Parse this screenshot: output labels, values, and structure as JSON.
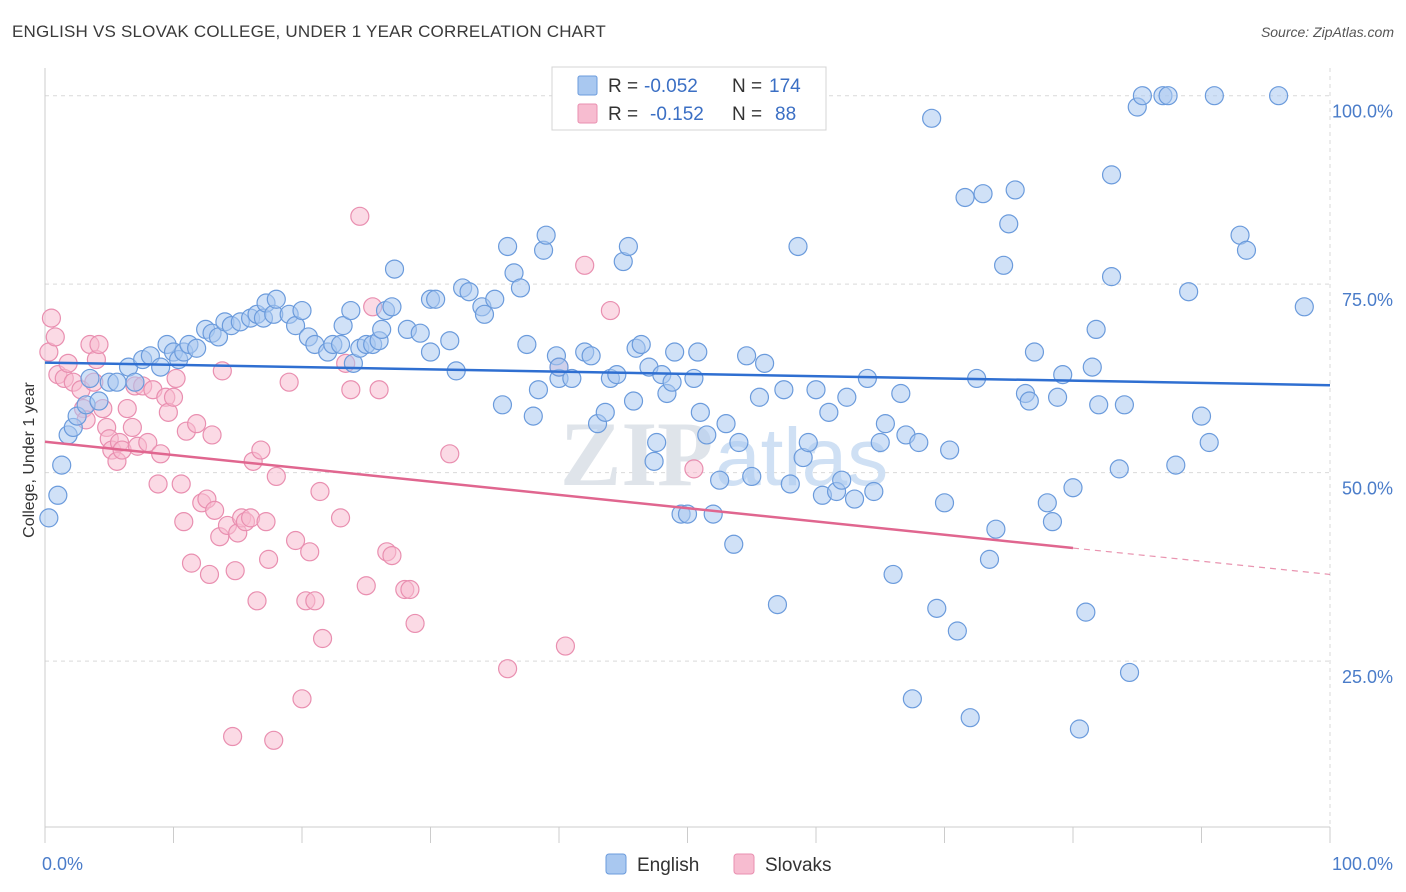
{
  "title": "ENGLISH VS SLOVAK COLLEGE, UNDER 1 YEAR CORRELATION CHART",
  "source": "Source: ZipAtlas.com",
  "colors": {
    "english_fill": "#a9c8f0",
    "english_stroke": "#6b9bdc",
    "english_line": "#2f6fd1",
    "slovak_fill": "#f7bcd0",
    "slovak_stroke": "#e98fb0",
    "slovak_line": "#e0668f",
    "tick_text": "#4a7cc9",
    "grid": "#d9d9d9"
  },
  "legend_box": {
    "rows": [
      {
        "r_label": "R =",
        "r_value": "-0.052",
        "n_label": "N =",
        "n_value": "174"
      },
      {
        "r_label": "R =",
        "r_value": "-0.152",
        "n_label": "N =",
        "n_value": "88"
      }
    ]
  },
  "bottom_legend": [
    "English",
    "Slovaks"
  ],
  "watermark": {
    "part1": "ZIP",
    "part2": "atlas"
  },
  "chart_data": {
    "type": "scatter",
    "title": "ENGLISH VS SLOVAK COLLEGE, UNDER 1 YEAR CORRELATION CHART",
    "xlabel": "",
    "ylabel": "College, Under 1 year",
    "xlim": [
      0,
      100
    ],
    "ylim": [
      3,
      105
    ],
    "x_ticks": [
      {
        "value": 0,
        "label": "0.0%"
      },
      {
        "value": 100,
        "label": "100.0%"
      }
    ],
    "y_ticks": [
      {
        "value": 25,
        "label": "25.0%"
      },
      {
        "value": 50,
        "label": "50.0%"
      },
      {
        "value": 75,
        "label": "75.0%"
      },
      {
        "value": 100,
        "label": "100.0%"
      }
    ],
    "grid": true,
    "legend_position": "top-center",
    "series": [
      {
        "name": "English",
        "r": -0.052,
        "n": 174,
        "trend": {
          "x": [
            0,
            100
          ],
          "y": [
            64.6,
            61.6
          ]
        },
        "points": [
          [
            0.3,
            44
          ],
          [
            1,
            47
          ],
          [
            1.3,
            51
          ],
          [
            1.8,
            55
          ],
          [
            2.2,
            56
          ],
          [
            2.5,
            57.5
          ],
          [
            3.2,
            59
          ],
          [
            3.5,
            62.5
          ],
          [
            4.2,
            59.5
          ],
          [
            5,
            62
          ],
          [
            5.6,
            62
          ],
          [
            6.5,
            64
          ],
          [
            7,
            62
          ],
          [
            7.6,
            65
          ],
          [
            8.2,
            65.5
          ],
          [
            9,
            64
          ],
          [
            9.5,
            67
          ],
          [
            10,
            66
          ],
          [
            10.4,
            65
          ],
          [
            10.8,
            66
          ],
          [
            11.2,
            67
          ],
          [
            11.8,
            66.5
          ],
          [
            12.5,
            69
          ],
          [
            13,
            68.5
          ],
          [
            13.5,
            68
          ],
          [
            14,
            70
          ],
          [
            14.5,
            69.5
          ],
          [
            15.2,
            70
          ],
          [
            16,
            70.5
          ],
          [
            16.5,
            71
          ],
          [
            17,
            70.5
          ],
          [
            17.2,
            72.5
          ],
          [
            17.8,
            71
          ],
          [
            18,
            73
          ],
          [
            19,
            71
          ],
          [
            19.5,
            69.5
          ],
          [
            20,
            71.5
          ],
          [
            20.5,
            68
          ],
          [
            21,
            67
          ],
          [
            22,
            66
          ],
          [
            22.4,
            67
          ],
          [
            23,
            67
          ],
          [
            23.2,
            69.5
          ],
          [
            23.8,
            71.5
          ],
          [
            24,
            64.5
          ],
          [
            24.5,
            66.5
          ],
          [
            25,
            67
          ],
          [
            25.5,
            67
          ],
          [
            26,
            67.5
          ],
          [
            26.2,
            69
          ],
          [
            26.5,
            71.5
          ],
          [
            27,
            72
          ],
          [
            27.2,
            77
          ],
          [
            28.2,
            69
          ],
          [
            29.2,
            68.5
          ],
          [
            30,
            73
          ],
          [
            30.4,
            73
          ],
          [
            30,
            66
          ],
          [
            31.5,
            67.5
          ],
          [
            32,
            63.5
          ],
          [
            32.5,
            74.5
          ],
          [
            33,
            74
          ],
          [
            34,
            72
          ],
          [
            34.2,
            71
          ],
          [
            35,
            73
          ],
          [
            35.6,
            59
          ],
          [
            36,
            80
          ],
          [
            36.5,
            76.5
          ],
          [
            37,
            74.5
          ],
          [
            37.5,
            67
          ],
          [
            38,
            57.5
          ],
          [
            38.4,
            61
          ],
          [
            38.8,
            79.5
          ],
          [
            39,
            81.5
          ],
          [
            39.8,
            65.5
          ],
          [
            40,
            62.5
          ],
          [
            40,
            64
          ],
          [
            41,
            62.5
          ],
          [
            42,
            66
          ],
          [
            42.5,
            65.5
          ],
          [
            43,
            56.5
          ],
          [
            43.6,
            58
          ],
          [
            44,
            62.5
          ],
          [
            44.5,
            63
          ],
          [
            45,
            78
          ],
          [
            45.4,
            80
          ],
          [
            45.8,
            59.5
          ],
          [
            46,
            66.5
          ],
          [
            46.4,
            67
          ],
          [
            47,
            64
          ],
          [
            47.4,
            51.5
          ],
          [
            47.6,
            54
          ],
          [
            48,
            63
          ],
          [
            48.4,
            60.5
          ],
          [
            48.8,
            62
          ],
          [
            49,
            66
          ],
          [
            49.5,
            44.5
          ],
          [
            50,
            44.5
          ],
          [
            50.5,
            62.5
          ],
          [
            50.8,
            66
          ],
          [
            51,
            58
          ],
          [
            51.5,
            55
          ],
          [
            52,
            44.5
          ],
          [
            52.5,
            49
          ],
          [
            53,
            56.5
          ],
          [
            53.6,
            40.5
          ],
          [
            54,
            54
          ],
          [
            54.6,
            65.5
          ],
          [
            55,
            49.5
          ],
          [
            55.6,
            60
          ],
          [
            56,
            64.5
          ],
          [
            57,
            32.5
          ],
          [
            57.5,
            61
          ],
          [
            58,
            48.5
          ],
          [
            58.6,
            80
          ],
          [
            59,
            52
          ],
          [
            59.4,
            54
          ],
          [
            60,
            61
          ],
          [
            60.5,
            47
          ],
          [
            61,
            58
          ],
          [
            61.6,
            47.5
          ],
          [
            62,
            49
          ],
          [
            62.4,
            60
          ],
          [
            63,
            46.5
          ],
          [
            64,
            62.5
          ],
          [
            64.5,
            47.5
          ],
          [
            65,
            54
          ],
          [
            65.4,
            56.5
          ],
          [
            66,
            36.5
          ],
          [
            66.6,
            60.5
          ],
          [
            67,
            55
          ],
          [
            67.5,
            20
          ],
          [
            68,
            54
          ],
          [
            69,
            97
          ],
          [
            69.4,
            32
          ],
          [
            70,
            46
          ],
          [
            70.4,
            53
          ],
          [
            71,
            29
          ],
          [
            71.6,
            86.5
          ],
          [
            72,
            17.5
          ],
          [
            72.5,
            62.5
          ],
          [
            73,
            87
          ],
          [
            73.5,
            38.5
          ],
          [
            74,
            42.5
          ],
          [
            74.6,
            77.5
          ],
          [
            75,
            83
          ],
          [
            75.5,
            87.5
          ],
          [
            76.3,
            60.5
          ],
          [
            76.6,
            59.5
          ],
          [
            77,
            66
          ],
          [
            78,
            46
          ],
          [
            78.4,
            43.5
          ],
          [
            78.8,
            60
          ],
          [
            79.2,
            63
          ],
          [
            80,
            48
          ],
          [
            80.5,
            16
          ],
          [
            81,
            31.5
          ],
          [
            81.5,
            64
          ],
          [
            81.8,
            69
          ],
          [
            82,
            59
          ],
          [
            83,
            89.5
          ],
          [
            83,
            76
          ],
          [
            83.6,
            50.5
          ],
          [
            84,
            59
          ],
          [
            84.4,
            23.5
          ],
          [
            85,
            98.5
          ],
          [
            85.4,
            100
          ],
          [
            87,
            100
          ],
          [
            87.4,
            100
          ],
          [
            88,
            51
          ],
          [
            89,
            74
          ],
          [
            90,
            57.5
          ],
          [
            90.6,
            54
          ],
          [
            91,
            100
          ],
          [
            93,
            81.5
          ],
          [
            93.5,
            79.5
          ],
          [
            96,
            100
          ],
          [
            98,
            72
          ]
        ]
      },
      {
        "name": "Slovaks",
        "r": -0.152,
        "n": 88,
        "trend": {
          "x": [
            0,
            80
          ],
          "y": [
            54.1,
            40
          ]
        },
        "trend_dashed": {
          "x": [
            80,
            100
          ],
          "y": [
            40,
            36.5
          ]
        },
        "points": [
          [
            0.3,
            66
          ],
          [
            0.5,
            70.5
          ],
          [
            0.8,
            68
          ],
          [
            1,
            63
          ],
          [
            1.5,
            62.5
          ],
          [
            1.8,
            64.5
          ],
          [
            2.2,
            62
          ],
          [
            2.8,
            61
          ],
          [
            3,
            58.5
          ],
          [
            3.2,
            57
          ],
          [
            3.5,
            67
          ],
          [
            3.8,
            62
          ],
          [
            4,
            65
          ],
          [
            4.2,
            67
          ],
          [
            4.5,
            58.5
          ],
          [
            4.8,
            56
          ],
          [
            5,
            54.5
          ],
          [
            5.2,
            53
          ],
          [
            5.6,
            51.5
          ],
          [
            5.8,
            54
          ],
          [
            6,
            53
          ],
          [
            6.4,
            58.5
          ],
          [
            6.8,
            56
          ],
          [
            7,
            61.5
          ],
          [
            7.2,
            53.5
          ],
          [
            7.6,
            61.5
          ],
          [
            8,
            54
          ],
          [
            8.4,
            61
          ],
          [
            8.8,
            48.5
          ],
          [
            9,
            52.5
          ],
          [
            9.4,
            60
          ],
          [
            9.6,
            58
          ],
          [
            10,
            60
          ],
          [
            10.2,
            62.5
          ],
          [
            10.6,
            48.5
          ],
          [
            10.8,
            43.5
          ],
          [
            11,
            55.5
          ],
          [
            11.4,
            38
          ],
          [
            11.8,
            56.5
          ],
          [
            12.2,
            46
          ],
          [
            12.6,
            46.5
          ],
          [
            12.8,
            36.5
          ],
          [
            13,
            55
          ],
          [
            13.2,
            45
          ],
          [
            13.6,
            41.5
          ],
          [
            13.8,
            63.5
          ],
          [
            14.2,
            43
          ],
          [
            14.6,
            15
          ],
          [
            14.8,
            37
          ],
          [
            15,
            42
          ],
          [
            15.3,
            44
          ],
          [
            15.6,
            43.5
          ],
          [
            16,
            44
          ],
          [
            16.2,
            51.5
          ],
          [
            16.5,
            33
          ],
          [
            16.8,
            53
          ],
          [
            17.2,
            43.5
          ],
          [
            17.4,
            38.5
          ],
          [
            17.8,
            14.5
          ],
          [
            18,
            49.5
          ],
          [
            19,
            62
          ],
          [
            19.5,
            41
          ],
          [
            20,
            20
          ],
          [
            20.3,
            33
          ],
          [
            20.6,
            39.5
          ],
          [
            21,
            33
          ],
          [
            21.4,
            47.5
          ],
          [
            21.6,
            28
          ],
          [
            23,
            44
          ],
          [
            23.4,
            64.5
          ],
          [
            23.8,
            61
          ],
          [
            24.5,
            84
          ],
          [
            25,
            35
          ],
          [
            25.5,
            72
          ],
          [
            26,
            61
          ],
          [
            26.6,
            39.5
          ],
          [
            27,
            39
          ],
          [
            28,
            34.5
          ],
          [
            28.4,
            34.5
          ],
          [
            28.8,
            30
          ],
          [
            31.5,
            52.5
          ],
          [
            36,
            24
          ],
          [
            40,
            64
          ],
          [
            40.5,
            27
          ],
          [
            42,
            77.5
          ],
          [
            44,
            71.5
          ],
          [
            50.5,
            50.5
          ]
        ]
      }
    ]
  }
}
